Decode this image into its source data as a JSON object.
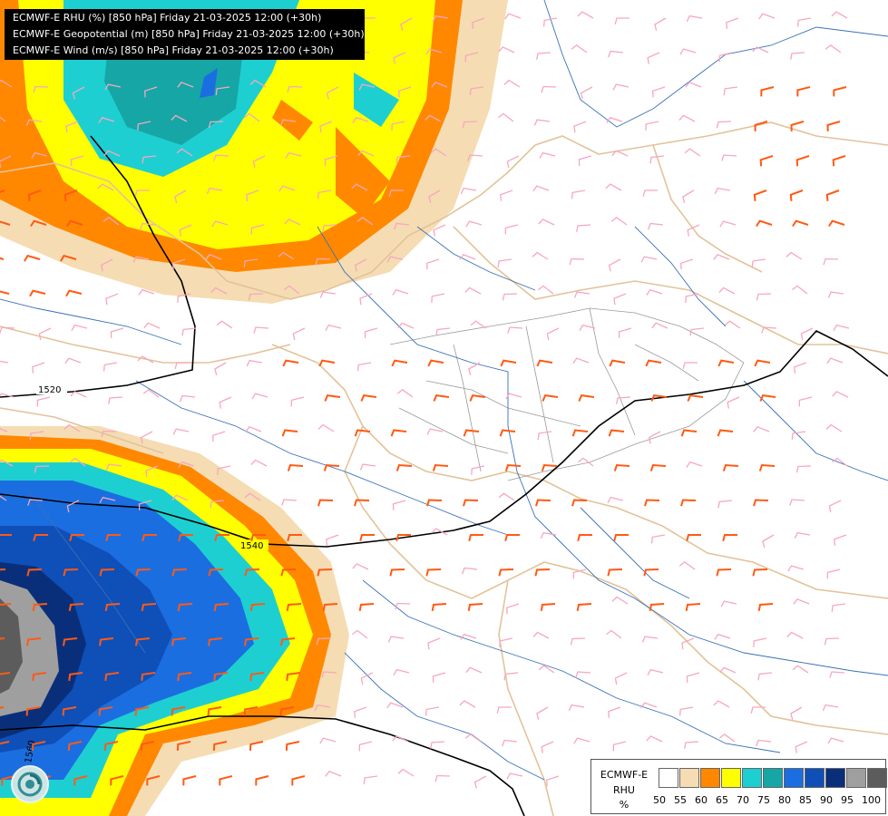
{
  "map": {
    "titles": [
      "ECMWF-E RHU (%) [850 hPa] Friday 21-03-2025 12:00 (+30h)",
      "ECMWF-E Geopotential (m) [850 hPa] Friday 21-03-2025 12:00 (+30h)",
      "ECMWF-E Wind (m/s) [850 hPa] Friday 21-03-2025 12:00 (+30h)"
    ],
    "isoline_labels": [
      "1520",
      "1540",
      "1560"
    ],
    "legend": {
      "line1": "ECMWF-E",
      "line2": "RHU",
      "unit": "%",
      "ticks": [
        "50",
        "55",
        "60",
        "65",
        "70",
        "75",
        "80",
        "85",
        "90",
        "95",
        "100"
      ],
      "colors": [
        "#ffffff",
        "#f5dcb3",
        "#ff8800",
        "#ffff00",
        "#1ecfd1",
        "#16a6a6",
        "#1b6ee0",
        "#0f4fb8",
        "#0a2f7a",
        "#9f9f9f",
        "#5c5c5c"
      ]
    },
    "logo": "ecmwf-swirl-icon"
  }
}
